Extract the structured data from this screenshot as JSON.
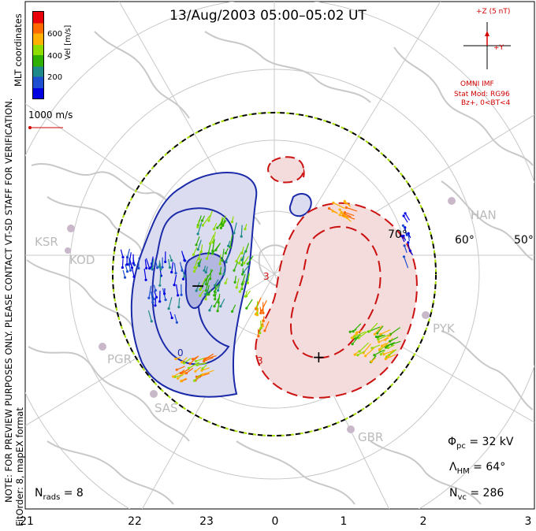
{
  "title": "13/Aug/2003 05:00–05:02 UT",
  "side_notes": {
    "preview": "NOTE: FOR PREVIEW PURPOSES ONLY. PLEASE CONTACT VT-SD STAFF FOR VERIFICATION.",
    "fit": "FitOrder: 8,  mapEX format",
    "coords": "MLT coordinates"
  },
  "colorbar": {
    "label": "Vel [m/s]",
    "ticks": [
      "600",
      "400",
      "200"
    ],
    "colors": [
      "#e8000b",
      "#ff6a00",
      "#ffb000",
      "#8fdc00",
      "#2fb000",
      "#1f8a8a",
      "#1d4fd0",
      "#0000e0"
    ]
  },
  "ref_vector": {
    "label": "1000 m/s",
    "color": "#d00000"
  },
  "imf": {
    "z_label": "+Z (5 nT)",
    "y_label": "+Y",
    "source": "OMNI IMF",
    "model": "Stat Mod: RG96",
    "condition": "Bz+,  0<BT<4",
    "color": "#d00000"
  },
  "stats": {
    "phi_pc": "32 kV",
    "lambda_hm": "64°",
    "n_vc": "286",
    "n_rads": "8"
  },
  "mlt_ticks": [
    "21",
    "22",
    "23",
    "0",
    "1",
    "2",
    "3"
  ],
  "lat_labels": [
    "70°",
    "60°",
    "50°"
  ],
  "radars": [
    "KSR",
    "KOD",
    "PGR",
    "SAS",
    "HAN",
    "PYK",
    "GBR"
  ],
  "potential": {
    "negative_color": "#1a2aa8",
    "positive_color": "#cc1111",
    "min_marker": "−",
    "max_marker": "+",
    "level_labels": [
      "3",
      "3",
      "0"
    ]
  }
}
